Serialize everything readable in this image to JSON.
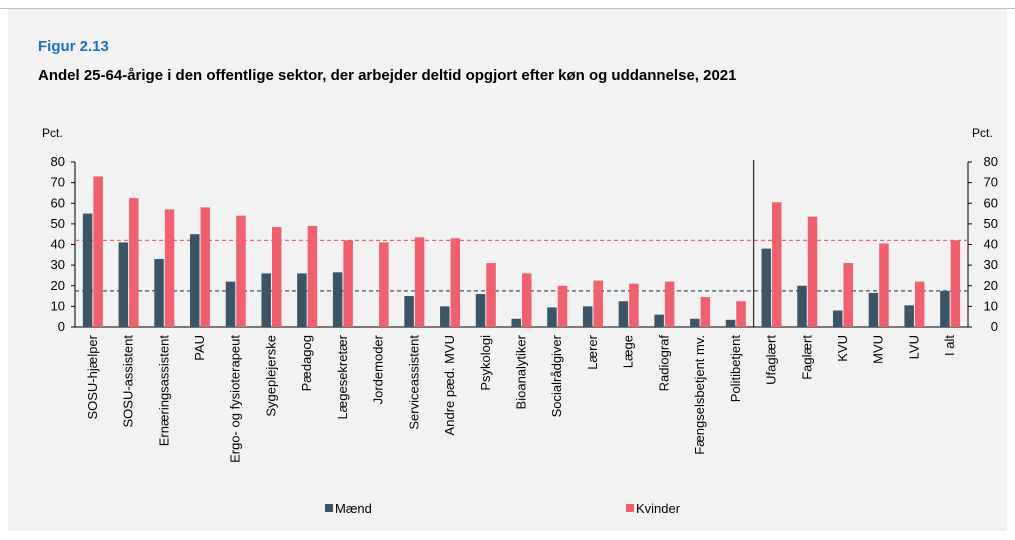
{
  "chart_data": {
    "type": "bar",
    "figure_label": "Figur 2.13",
    "title": "Andel 25-64-årige i den offentlige sektor, der arbejder deltid opgjort efter køn og uddannelse, 2021",
    "y_label": "Pct.",
    "y2_label": "Pct.",
    "categories": [
      "SOSU-hjælper",
      "SOSU-assistent",
      "Ernæringsassistent",
      "PAU",
      "Ergo- og fysioterapeut",
      "Sygeplejerske",
      "Pædagog",
      "Lægesekretær",
      "Jordemoder",
      "Serviceassistent",
      "Andre pæd. MVU",
      "Psykologi",
      "Bioanalytiker",
      "Socialrådgiver",
      "Lærer",
      "Læge",
      "Radiograf",
      "Fængselsbetjent mv.",
      "Politibetjent",
      "Ufaglært",
      "Faglært",
      "KVU",
      "MVU",
      "LVU",
      "I alt"
    ],
    "series": [
      {
        "name": "Mænd",
        "color": "#3c5468",
        "values": [
          55,
          41,
          33,
          45,
          22,
          26,
          26,
          26.5,
          null,
          15,
          10,
          16,
          4,
          9.5,
          10,
          12.5,
          6,
          4,
          3.5,
          38,
          20,
          8,
          16.5,
          10.5,
          17.5
        ]
      },
      {
        "name": "Kvinder",
        "color": "#f0606e",
        "values": [
          73,
          62.5,
          57,
          58,
          54,
          48.5,
          49,
          42,
          41,
          43.5,
          43,
          31,
          26,
          20,
          22.5,
          21,
          22,
          14.5,
          12.5,
          60.5,
          53.5,
          31,
          40.5,
          22,
          42
        ]
      }
    ],
    "ylim": [
      0,
      80
    ],
    "yticks": [
      0,
      10,
      20,
      30,
      40,
      50,
      60,
      70,
      80
    ],
    "y2lim": [
      0,
      80
    ],
    "y2ticks": [
      0,
      10,
      20,
      30,
      40,
      50,
      60,
      70,
      80
    ],
    "legend": "bottom"
  }
}
